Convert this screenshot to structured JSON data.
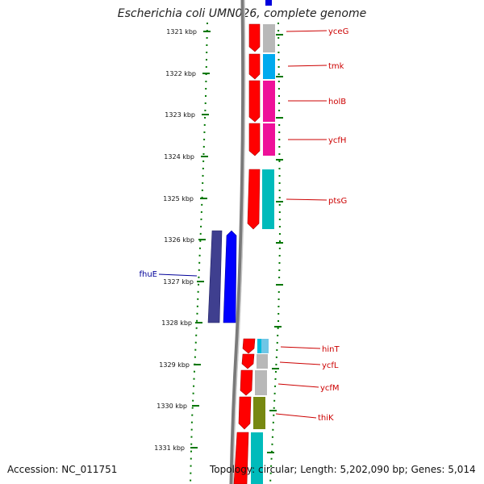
{
  "title": "Escherichia coli UMN026, complete genome",
  "footer": {
    "accession": "Accession: NC_011751",
    "summary": "Topology: circular; Length: 5,202,090 bp; Genes: 5,014"
  },
  "kbp_labels": [
    "1321 kbp",
    "1322 kbp",
    "1323 kbp",
    "1324 kbp",
    "1325 kbp",
    "1326 kbp",
    "1327 kbp",
    "1328 kbp",
    "1329 kbp",
    "1330 kbp",
    "1331 kbp"
  ],
  "genes_right": [
    "yceG",
    "tmk",
    "holB",
    "ycfH",
    "ptsG",
    "hinT",
    "ycfL",
    "ycfM",
    "thiK"
  ],
  "genes_left": [
    "fhuE"
  ],
  "colors": {
    "forward": "#ff0000",
    "reverse": "#0000ff",
    "reverse_dark": "#3f3f8f",
    "right_label": "#cc0000",
    "left_label": "#000099",
    "tick": "#007700",
    "backbone": "#808080"
  }
}
